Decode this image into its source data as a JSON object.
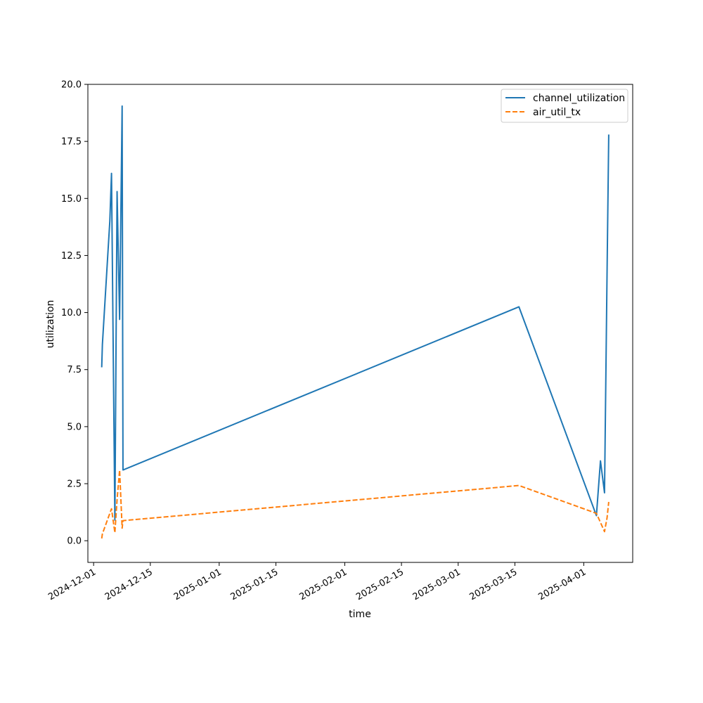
{
  "chart_data": {
    "type": "line",
    "title": "",
    "xlabel": "time",
    "ylabel": "utilization",
    "x_ticks": [
      "2024-12-01",
      "2024-12-15",
      "2025-01-01",
      "2025-01-15",
      "2025-02-01",
      "2025-02-15",
      "2025-03-01",
      "2025-03-15",
      "2025-04-01"
    ],
    "y_ticks": [
      "0.0",
      "2.5",
      "5.0",
      "7.5",
      "10.0",
      "12.5",
      "15.0",
      "17.5",
      "20.0"
    ],
    "xlim": [
      "2024-11-29T14:00",
      "2025-04-13T02:00"
    ],
    "ylim": [
      -0.95,
      20.0
    ],
    "grid": false,
    "legend_position": "top-right",
    "series": [
      {
        "name": "channel_utilization",
        "color": "#1f77b4",
        "style": "solid",
        "points": [
          {
            "x": "2024-12-03T00:00",
            "y": 7.6
          },
          {
            "x": "2024-12-03T04:00",
            "y": 8.6
          },
          {
            "x": "2024-12-05T00:00",
            "y": 14.0
          },
          {
            "x": "2024-12-05T10:00",
            "y": 16.1
          },
          {
            "x": "2024-12-06T06:00",
            "y": 0.9
          },
          {
            "x": "2024-12-06T19:00",
            "y": 15.3
          },
          {
            "x": "2024-12-07T10:00",
            "y": 9.7
          },
          {
            "x": "2024-12-08T01:00",
            "y": 19.05
          },
          {
            "x": "2024-12-08T06:00",
            "y": 3.1
          },
          {
            "x": "2025-03-16T00:00",
            "y": 10.25
          },
          {
            "x": "2025-04-04T03:00",
            "y": 1.1
          },
          {
            "x": "2025-04-05T03:00",
            "y": 3.5
          },
          {
            "x": "2025-04-06T03:00",
            "y": 2.1
          },
          {
            "x": "2025-04-06T18:00",
            "y": 11.7
          },
          {
            "x": "2025-04-07T04:00",
            "y": 17.8
          }
        ]
      },
      {
        "name": "air_util_tx",
        "color": "#ff7f0e",
        "style": "dashed",
        "points": [
          {
            "x": "2024-12-03T00:00",
            "y": 0.1
          },
          {
            "x": "2024-12-03T04:00",
            "y": 0.3
          },
          {
            "x": "2024-12-05T00:00",
            "y": 1.2
          },
          {
            "x": "2024-12-05T10:00",
            "y": 1.4
          },
          {
            "x": "2024-12-06T06:00",
            "y": 0.35
          },
          {
            "x": "2024-12-06T19:00",
            "y": 1.8
          },
          {
            "x": "2024-12-07T10:00",
            "y": 3.1
          },
          {
            "x": "2024-12-08T01:00",
            "y": 0.55
          },
          {
            "x": "2024-12-08T06:00",
            "y": 0.88
          },
          {
            "x": "2025-03-16T00:00",
            "y": 2.42
          },
          {
            "x": "2025-04-04T03:00",
            "y": 1.2
          },
          {
            "x": "2025-04-05T03:00",
            "y": 0.8
          },
          {
            "x": "2025-04-06T03:00",
            "y": 0.4
          },
          {
            "x": "2025-04-06T18:00",
            "y": 1.0
          },
          {
            "x": "2025-04-07T04:00",
            "y": 1.7
          }
        ]
      }
    ]
  }
}
